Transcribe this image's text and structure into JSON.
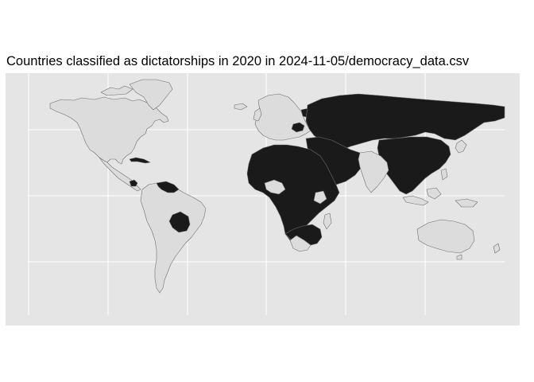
{
  "title": "Countries classified as dictatorships in 2020 in 2024-11-05/democracy_data.csv",
  "map": {
    "projection": "equirectangular",
    "grid": true,
    "legend": "none",
    "colors": {
      "panel_background": "#e5e5e5",
      "grid": "#ffffff",
      "dictatorship_fill": "#1a1a1a",
      "other_fill": "#dcdcdc",
      "border": "#6e6e6e"
    },
    "dictatorship_regions": [
      "Russia",
      "Belarus",
      "Kazakhstan",
      "Uzbekistan",
      "Turkmenistan",
      "Kyrgyzstan",
      "Tajikistan",
      "Azerbaijan",
      "China",
      "North Korea",
      "Mongolia",
      "Myanmar",
      "Thailand",
      "Laos",
      "Vietnam",
      "Cambodia",
      "Iran",
      "Iraq",
      "Syria",
      "Saudi Arabia",
      "Yemen",
      "Oman",
      "United Arab Emirates",
      "Qatar",
      "Afghanistan",
      "Morocco",
      "Algeria",
      "Libya",
      "Egypt",
      "Sudan",
      "South Sudan",
      "Chad",
      "Niger",
      "Mali",
      "Mauritania",
      "Burkina Faso",
      "Guinea",
      "Togo",
      "Cameroon",
      "Central African Republic",
      "Republic of the Congo",
      "DR Congo",
      "Uganda",
      "Rwanda",
      "Burundi",
      "Tanzania",
      "Ethiopia",
      "Eritrea",
      "Djibouti",
      "Somalia",
      "Angola",
      "Zambia",
      "Zimbabwe",
      "Mozambique",
      "Eswatini",
      "Equatorial Guinea",
      "Gabon",
      "Venezuela",
      "Nicaragua",
      "Cuba",
      "Bolivia",
      "Hungary",
      "Serbia",
      "Turkey"
    ]
  }
}
